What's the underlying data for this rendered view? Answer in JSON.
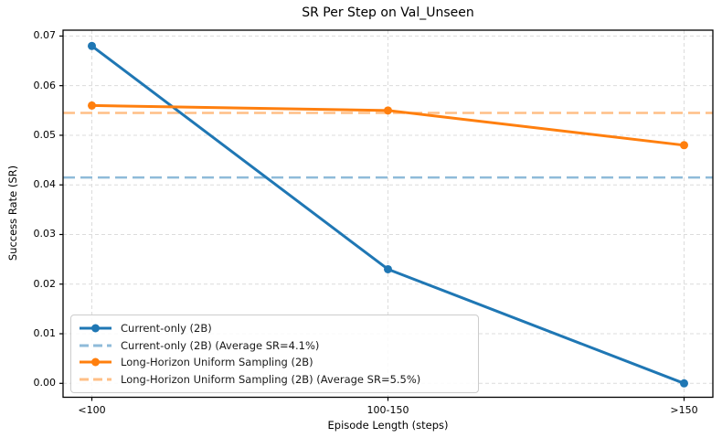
{
  "chart_data": {
    "type": "line",
    "title": "SR Per Step on Val_Unseen",
    "xlabel": "Episode Length (steps)",
    "ylabel": "Success Rate (SR)",
    "categories": [
      "<100",
      "100-150",
      ">150"
    ],
    "yticks": [
      "0.00",
      "0.01",
      "0.02",
      "0.03",
      "0.04",
      "0.05",
      "0.06",
      "0.07"
    ],
    "ytick_values": [
      0.0,
      0.01,
      0.02,
      0.03,
      0.04,
      0.05,
      0.06,
      0.07
    ],
    "ylim": [
      0.0,
      0.07
    ],
    "grid": true,
    "legend_position": "lower left",
    "colors": {
      "current_only": "#1f77b4",
      "current_only_avg": "#8fbbd9",
      "long_horizon": "#ff7f0e",
      "long_horizon_avg": "#ffbf86",
      "gridline": "#dcdcdc",
      "spine": "#000000"
    },
    "series": [
      {
        "name": "Current-only (2B)",
        "style": "solid",
        "marker": "circle",
        "color": "#1f77b4",
        "values": [
          0.068,
          0.023,
          0.0
        ]
      },
      {
        "name": "Current-only (2B) (Average SR=4.1%)",
        "style": "dashed",
        "color": "#8fbbd9",
        "avg_value": 0.0415
      },
      {
        "name": "Long-Horizon Uniform Sampling (2B)",
        "style": "solid",
        "marker": "circle",
        "color": "#ff7f0e",
        "values": [
          0.056,
          0.055,
          0.048
        ]
      },
      {
        "name": "Long-Horizon Uniform Sampling (2B) (Average SR=5.5%)",
        "style": "dashed",
        "color": "#ffbf86",
        "avg_value": 0.0545
      }
    ]
  }
}
